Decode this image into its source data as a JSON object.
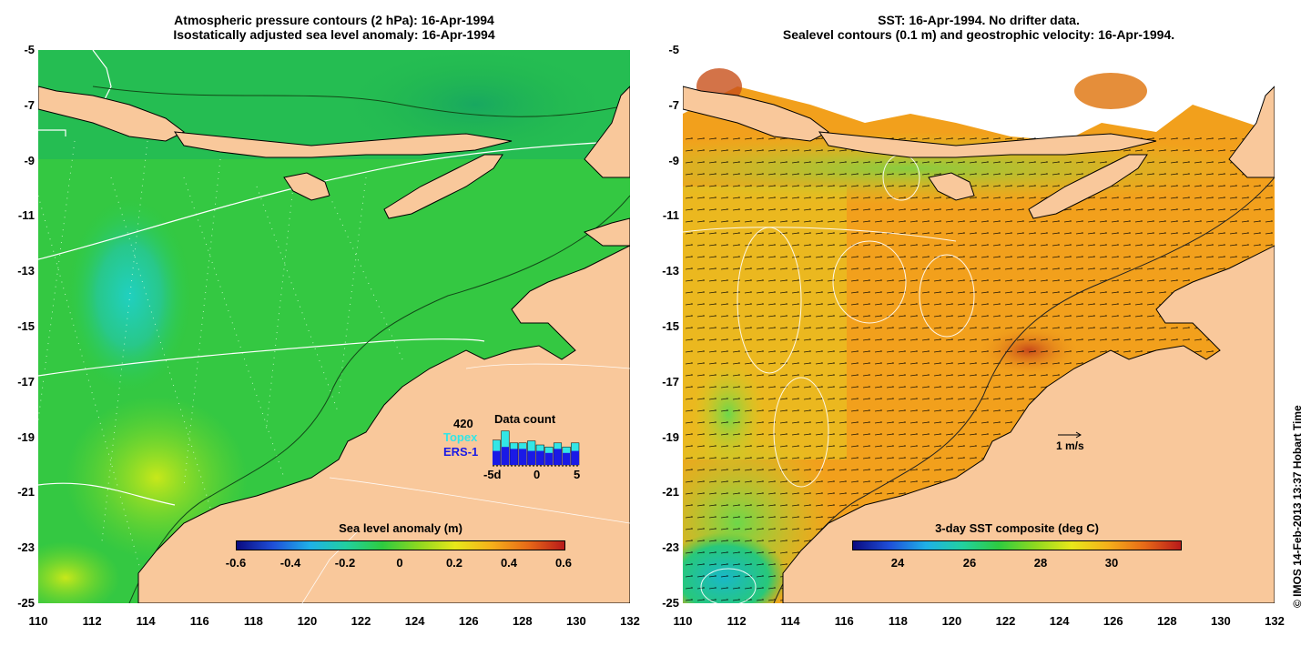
{
  "left_panel": {
    "title_line1": "Atmospheric pressure contours (2 hPa): 16-Apr-1994",
    "title_line2": "Isostatically adjusted sea level anomaly: 16-Apr-1994",
    "colorbar_title": "Sea level anomaly (m)",
    "colorbar_ticks": [
      "-0.6",
      "-0.4",
      "-0.2",
      "0",
      "0.2",
      "0.4",
      "0.6"
    ],
    "inset": {
      "count": "420",
      "title": "Data count",
      "topex_label": "Topex",
      "ers_label": "ERS-1",
      "x_ticks": [
        "-5d",
        "0",
        "5"
      ],
      "topex_values": [
        0.62,
        0.85,
        0.55,
        0.55,
        0.6,
        0.5,
        0.45,
        0.55,
        0.45,
        0.55
      ],
      "ers_values": [
        0.35,
        0.45,
        0.4,
        0.4,
        0.35,
        0.35,
        0.3,
        0.4,
        0.3,
        0.35
      ],
      "colors": {
        "topex": "#33e6e6",
        "ers": "#1a1ae6"
      }
    },
    "colors": {
      "ocean": "#2ecc40",
      "land": "#f9c89b"
    }
  },
  "right_panel": {
    "title_line1": "SST: 16-Apr-1994. No drifter data.",
    "title_line2": "Sealevel contours (0.1 m) and geostrophic velocity: 16-Apr-1994.",
    "colorbar_title": "3-day SST composite (deg C)",
    "colorbar_ticks": [
      "24",
      "26",
      "28",
      "30"
    ],
    "scale_label": "1 m/s",
    "colors": {
      "ocean": "#f4a81a",
      "land": "#f9c89b",
      "cloud": "#ffffff"
    }
  },
  "axes": {
    "y_ticks": [
      "-5",
      "-7",
      "-9",
      "-11",
      "-13",
      "-15",
      "-17",
      "-19",
      "-21",
      "-23",
      "-25"
    ],
    "x_ticks": [
      "110",
      "112",
      "114",
      "116",
      "118",
      "120",
      "122",
      "124",
      "126",
      "128",
      "130",
      "132"
    ]
  },
  "credit": "© IMOS 14-Feb-2013 13:37 Hobart Time"
}
